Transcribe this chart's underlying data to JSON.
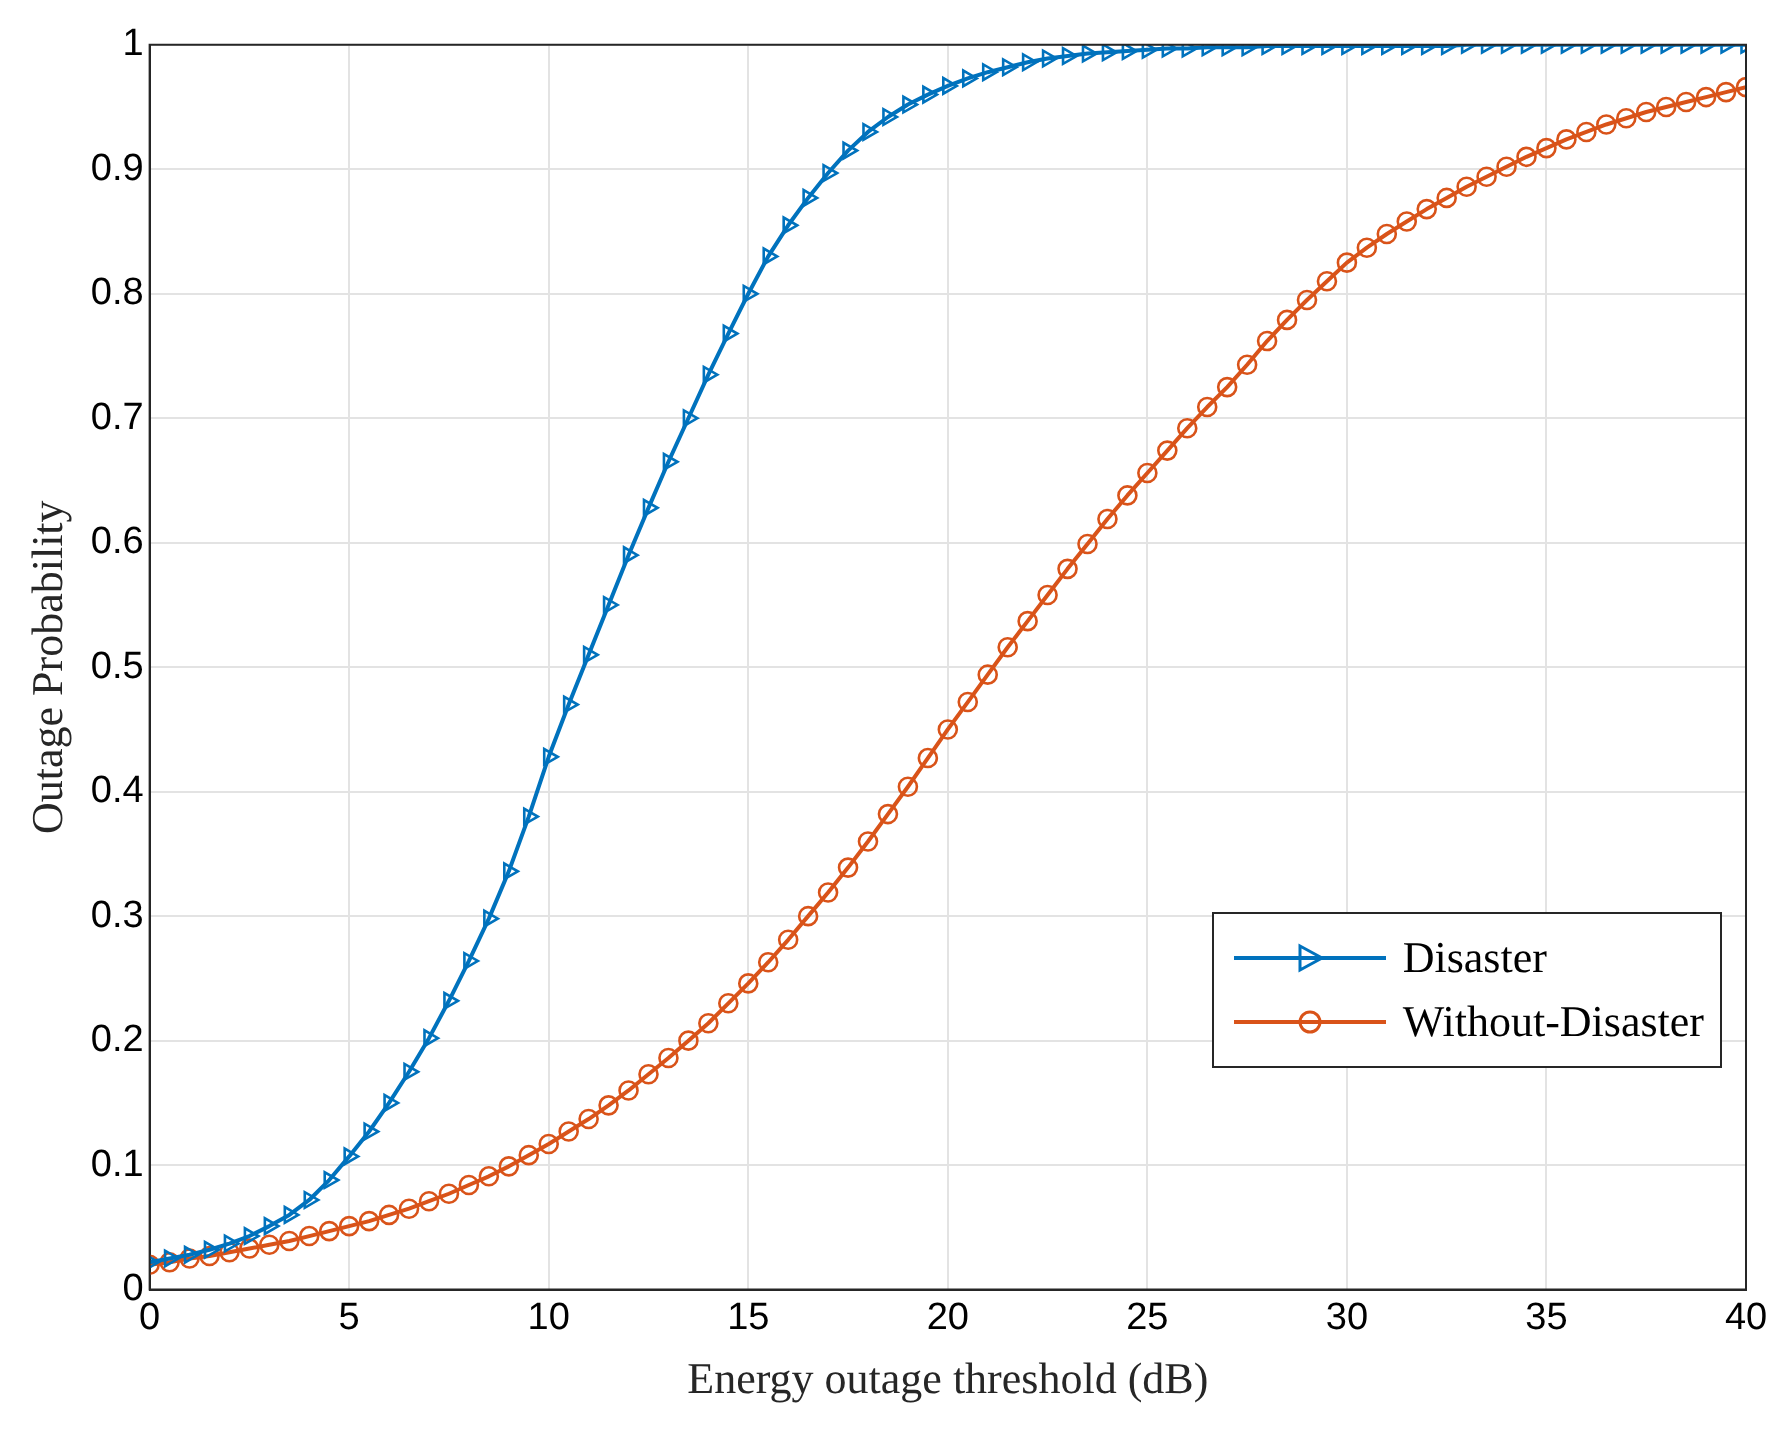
{
  "chart_data": {
    "type": "line",
    "xlabel": "Energy outage threshold (dB)",
    "ylabel": "Outage Probability",
    "x": [
      0,
      0.5,
      1,
      1.5,
      2,
      2.5,
      3,
      3.5,
      4,
      4.5,
      5,
      5.5,
      6,
      6.5,
      7,
      7.5,
      8,
      8.5,
      9,
      9.5,
      10,
      10.5,
      11,
      11.5,
      12,
      12.5,
      13,
      13.5,
      14,
      14.5,
      15,
      15.5,
      16,
      16.5,
      17,
      17.5,
      18,
      18.5,
      19,
      19.5,
      20,
      20.5,
      21,
      21.5,
      22,
      22.5,
      23,
      23.5,
      24,
      24.5,
      25,
      25.5,
      26,
      26.5,
      27,
      27.5,
      28,
      28.5,
      29,
      29.5,
      30,
      30.5,
      31,
      31.5,
      32,
      32.5,
      33,
      33.5,
      34,
      34.5,
      35,
      35.5,
      36,
      36.5,
      37,
      37.5,
      38,
      38.5,
      39,
      39.5,
      40
    ],
    "series": [
      {
        "name": "Disaster",
        "color": "#0072bd",
        "marker": "triangle",
        "values": [
          0.022,
          0.025,
          0.028,
          0.032,
          0.037,
          0.043,
          0.051,
          0.06,
          0.072,
          0.088,
          0.107,
          0.127,
          0.15,
          0.175,
          0.202,
          0.232,
          0.264,
          0.298,
          0.336,
          0.38,
          0.428,
          0.47,
          0.51,
          0.55,
          0.59,
          0.628,
          0.665,
          0.7,
          0.735,
          0.768,
          0.8,
          0.83,
          0.855,
          0.877,
          0.897,
          0.915,
          0.93,
          0.942,
          0.952,
          0.96,
          0.967,
          0.973,
          0.978,
          0.982,
          0.986,
          0.989,
          0.991,
          0.993,
          0.994,
          0.995,
          0.996,
          0.997,
          0.997,
          0.998,
          0.998,
          0.998,
          0.999,
          0.999,
          0.999,
          0.999,
          0.999,
          0.999,
          0.999,
          0.999,
          0.999,
          0.999,
          1,
          1,
          1,
          1,
          1,
          1,
          1,
          1,
          1,
          1,
          1,
          1,
          1,
          1,
          1
        ]
      },
      {
        "name": "Without-Disaster",
        "color": "#d95319",
        "marker": "circle",
        "values": [
          0.02,
          0.022,
          0.025,
          0.027,
          0.03,
          0.033,
          0.036,
          0.039,
          0.043,
          0.047,
          0.051,
          0.055,
          0.06,
          0.065,
          0.071,
          0.077,
          0.084,
          0.091,
          0.099,
          0.108,
          0.117,
          0.127,
          0.137,
          0.148,
          0.16,
          0.173,
          0.186,
          0.2,
          0.214,
          0.23,
          0.246,
          0.263,
          0.281,
          0.3,
          0.319,
          0.339,
          0.36,
          0.382,
          0.404,
          0.427,
          0.45,
          0.472,
          0.494,
          0.516,
          0.537,
          0.558,
          0.579,
          0.599,
          0.619,
          0.638,
          0.656,
          0.674,
          0.692,
          0.709,
          0.725,
          0.743,
          0.762,
          0.779,
          0.795,
          0.81,
          0.825,
          0.837,
          0.848,
          0.858,
          0.868,
          0.877,
          0.886,
          0.894,
          0.902,
          0.91,
          0.917,
          0.924,
          0.93,
          0.936,
          0.941,
          0.946,
          0.95,
          0.954,
          0.958,
          0.962,
          0.966
        ]
      }
    ],
    "xlim": [
      0,
      40
    ],
    "xticks": [
      0,
      5,
      10,
      15,
      20,
      25,
      30,
      35,
      40
    ],
    "ylim": [
      0,
      1
    ],
    "yticks": [
      0,
      0.1,
      0.2,
      0.3,
      0.4,
      0.5,
      0.6,
      0.7,
      0.8,
      0.9,
      1
    ],
    "grid": true,
    "legend": "right"
  }
}
